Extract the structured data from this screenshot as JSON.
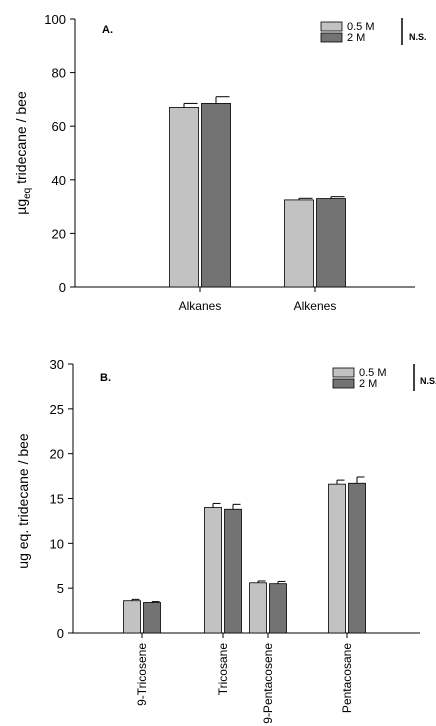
{
  "colors": {
    "light": "#c2c2c2",
    "dark": "#737373"
  },
  "chart_data": [
    {
      "type": "bar",
      "panel_label": "A.",
      "ylabel_main": "µg",
      "ylabel_sub": "eq",
      "ylabel_rest": " tridecane / bee",
      "ylim": [
        0,
        100
      ],
      "yticks": [
        0,
        20,
        40,
        60,
        80,
        100
      ],
      "categories": [
        "Alkanes",
        "Alkenes"
      ],
      "series": [
        {
          "name": "0.5 M",
          "values": [
            67,
            32.5
          ],
          "errors": [
            1.5,
            0.6
          ]
        },
        {
          "name": "2 M",
          "values": [
            68.5,
            33
          ],
          "errors": [
            2.5,
            0.7
          ]
        }
      ],
      "significance": "N.S.",
      "legend": "top-right",
      "grid": false
    },
    {
      "type": "bar",
      "panel_label": "B.",
      "ylabel": "ug eq. tridecane / bee",
      "ylim": [
        0,
        30
      ],
      "yticks": [
        0,
        5,
        10,
        15,
        20,
        25,
        30
      ],
      "categories": [
        "9-Tricosene",
        "Tricosane",
        "9-Pentacosene",
        "Pentacosane"
      ],
      "series": [
        {
          "name": "0.5 M",
          "values": [
            3.6,
            14.0,
            5.6,
            16.6
          ],
          "errors": [
            0.15,
            0.45,
            0.2,
            0.45
          ]
        },
        {
          "name": "2 M",
          "values": [
            3.4,
            13.8,
            5.5,
            16.7
          ],
          "errors": [
            0.1,
            0.55,
            0.25,
            0.7
          ]
        }
      ],
      "significance": "N.S.",
      "legend": "top-right",
      "grid": false
    }
  ]
}
